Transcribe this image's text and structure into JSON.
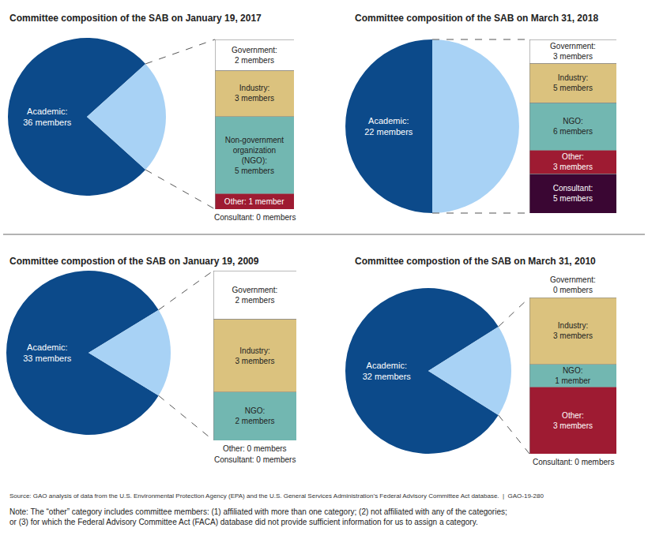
{
  "chart_data": [
    {
      "type": "pie",
      "title": "Committee composition of the SAB on January 19, 2017",
      "categories": [
        "Academic",
        null
      ],
      "values": [
        36,
        11
      ],
      "colors": [
        "#0c4a8a",
        "#a8d2f5"
      ],
      "value_labels": [
        "Academic:\n36 members",
        null
      ],
      "data_labels": true,
      "breakdown": {
        "type": "bar",
        "stacked": true,
        "data_labels": true,
        "tick_labels": false,
        "categories": [
          "Government",
          "Industry",
          "Non-government organization (NGO)",
          "Other",
          "Consultant"
        ],
        "values": [
          2,
          3,
          5,
          1,
          0
        ],
        "colors": [
          "#ffffff",
          "#dbc27e",
          "#72b7b1",
          "#9e1b32",
          "#3a0633"
        ],
        "value_labels": [
          "Government:\n2 members",
          "Industry:\n3 members",
          "Non-government\norganization\n(NGO):\n5 members",
          "Other: 1 member",
          "Consultant: 0 members"
        ]
      }
    },
    {
      "type": "pie",
      "title": "Committee composition of the SAB on March 31, 2018",
      "categories": [
        "Academic",
        null
      ],
      "values": [
        22,
        22
      ],
      "colors": [
        "#0c4a8a",
        "#a8d2f5"
      ],
      "value_labels": [
        "Academic:\n22 members",
        null
      ],
      "data_labels": true,
      "breakdown": {
        "type": "bar",
        "stacked": true,
        "data_labels": true,
        "tick_labels": false,
        "categories": [
          "Government",
          "Industry",
          "NGO",
          "Other",
          "Consultant"
        ],
        "values": [
          3,
          5,
          6,
          3,
          5
        ],
        "colors": [
          "#ffffff",
          "#dbc27e",
          "#72b7b1",
          "#9e1b32",
          "#3a0633"
        ],
        "value_labels": [
          "Government:\n3 members",
          "Industry:\n5 members",
          "NGO:\n6 members",
          "Other:\n3 members",
          "Consultant:\n5 members"
        ]
      }
    },
    {
      "type": "pie",
      "title": "Committee compostion of the SAB on January 19, 2009",
      "categories": [
        "Academic",
        null
      ],
      "values": [
        33,
        7
      ],
      "colors": [
        "#0c4a8a",
        "#a8d2f5"
      ],
      "value_labels": [
        "Academic:\n33 members",
        null
      ],
      "data_labels": true,
      "breakdown": {
        "type": "bar",
        "stacked": true,
        "data_labels": true,
        "tick_labels": false,
        "categories": [
          "Government",
          "Industry",
          "NGO",
          "Other",
          "Consultant"
        ],
        "values": [
          2,
          3,
          2,
          0,
          0
        ],
        "colors": [
          "#ffffff",
          "#dbc27e",
          "#72b7b1",
          "#9e1b32",
          "#3a0633"
        ],
        "value_labels": [
          "Government:\n2 members",
          "Industry:\n3 members",
          "NGO:\n2 members",
          "Other: 0 members",
          "Consultant: 0 members"
        ]
      }
    },
    {
      "type": "pie",
      "title": "Committee compostion of the SAB on March 31, 2010",
      "categories": [
        "Academic",
        null
      ],
      "values": [
        32,
        7
      ],
      "colors": [
        "#0c4a8a",
        "#a8d2f5"
      ],
      "value_labels": [
        "Academic:\n32 members",
        null
      ],
      "data_labels": true,
      "breakdown": {
        "type": "bar",
        "stacked": true,
        "data_labels": true,
        "tick_labels": false,
        "categories": [
          "Government",
          "Industry",
          "NGO",
          "Other",
          "Consultant"
        ],
        "values": [
          0,
          3,
          1,
          3,
          0
        ],
        "colors": [
          "#ffffff",
          "#dbc27e",
          "#72b7b1",
          "#9e1b32",
          "#3a0633"
        ],
        "value_labels": [
          "Government:\n0 members",
          "Industry:\n3 members",
          "NGO:\n1 member",
          "Other:\n3 members",
          "Consultant: 0 members"
        ]
      }
    }
  ],
  "source": "Source: GAO analysis of data from the U.S. Environmental Protection Agency (EPA) and the U.S. General Services Administration’s Federal Advisory Committee Act database.  |  GAO-19-280",
  "note": "Note: The “other” category includes committee members: (1) affiliated with more than one category; (2) not affiliated with any of the categories;\nor (3) for which the Federal Advisory Committee Act (FACA) database did not provide sufficient information for us to assign a category."
}
